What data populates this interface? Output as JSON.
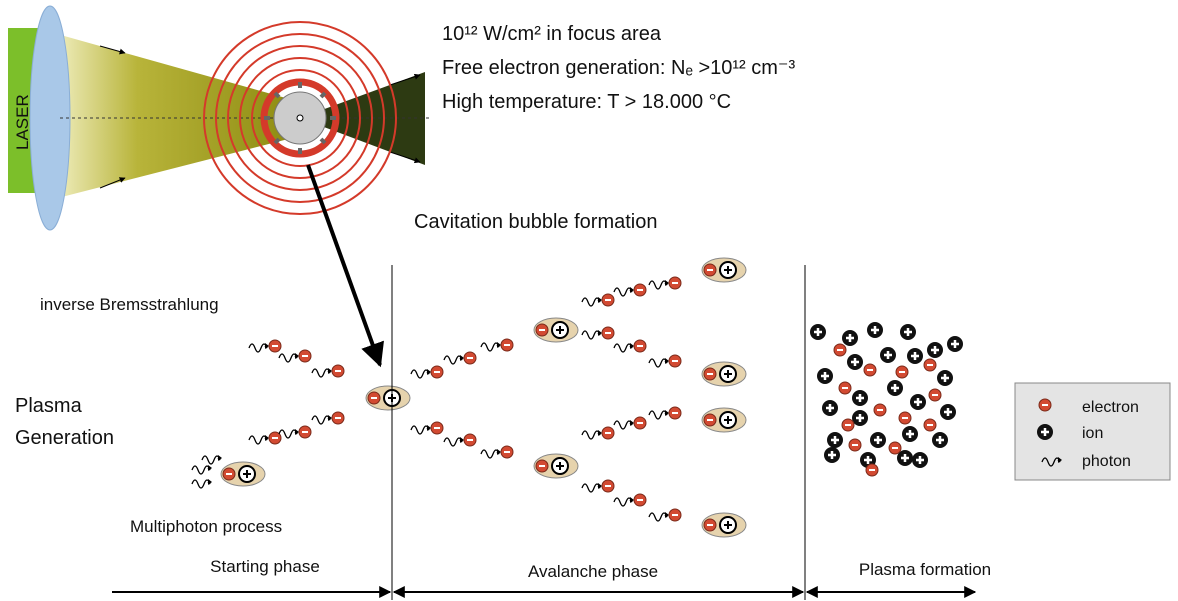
{
  "header": {
    "laser": "LASER",
    "lines": [
      "10¹² W/cm² in focus area",
      "Free electron generation: Nₑ >10¹² cm⁻³",
      "High temperature: T > 18.000 °C"
    ]
  },
  "cavitation": "Cavitation bubble formation",
  "bremsstrahlung": "inverse Bremsstrahlung",
  "plasma_generation": [
    "Plasma",
    "Generation"
  ],
  "multiphoton": "Multiphoton process",
  "phases": [
    "Starting phase",
    "Avalanche phase",
    "Plasma formation"
  ],
  "legend": [
    "electron",
    "ion",
    "photon"
  ]
}
